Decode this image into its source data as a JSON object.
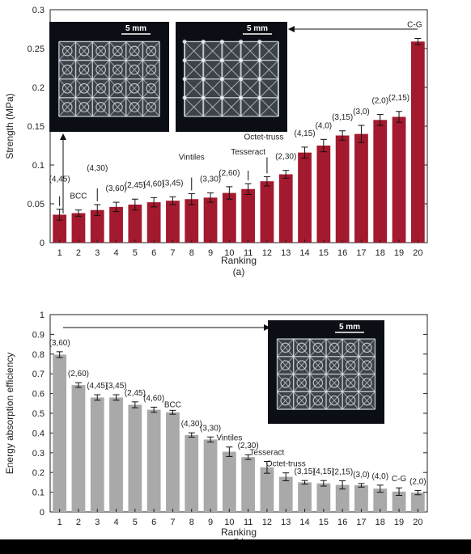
{
  "chart_data": [
    {
      "type": "bar",
      "panel_label": "(a)",
      "xlabel": "Ranking",
      "ylabel": "Strength (MPa)",
      "ylim": [
        0,
        0.3
      ],
      "yticks": [
        "0",
        "0.05",
        "0.1",
        "0.15",
        "0.2",
        "0.25",
        "0.3"
      ],
      "categories": [
        "1",
        "2",
        "3",
        "4",
        "5",
        "6",
        "7",
        "8",
        "9",
        "10",
        "11",
        "12",
        "13",
        "14",
        "15",
        "16",
        "17",
        "18",
        "19",
        "20"
      ],
      "values": [
        0.036,
        0.038,
        0.042,
        0.046,
        0.049,
        0.052,
        0.054,
        0.056,
        0.058,
        0.064,
        0.069,
        0.079,
        0.088,
        0.116,
        0.125,
        0.138,
        0.14,
        0.158,
        0.162,
        0.259
      ],
      "errors": [
        0.007,
        0.004,
        0.007,
        0.006,
        0.007,
        0.006,
        0.005,
        0.007,
        0.006,
        0.008,
        0.007,
        0.006,
        0.005,
        0.007,
        0.008,
        0.006,
        0.011,
        0.007,
        0.007,
        0.004
      ],
      "bar_color": "#a3192d",
      "annotations": [
        {
          "text": "(4,45)",
          "bar": 1
        },
        {
          "text": "BCC",
          "bar": 2
        },
        {
          "text": "(4,30)",
          "bar": 3
        },
        {
          "text": "(3,60)",
          "bar": 4
        },
        {
          "text": "(2,45)",
          "bar": 5
        },
        {
          "text": "(4,60)",
          "bar": 6
        },
        {
          "text": "(3,45)",
          "bar": 7
        },
        {
          "text": "Vintiles",
          "bar": 8
        },
        {
          "text": "(3,30)",
          "bar": 9
        },
        {
          "text": "(2,60)",
          "bar": 10
        },
        {
          "text": "Tesseract",
          "bar": 11
        },
        {
          "text": "Octet-truss",
          "bar": 12
        },
        {
          "text": "(2,30)",
          "bar": 13
        },
        {
          "text": "(4,15)",
          "bar": 14
        },
        {
          "text": "(4,0)",
          "bar": 15
        },
        {
          "text": "(3,15)",
          "bar": 16
        },
        {
          "text": "(3,0)",
          "bar": 17
        },
        {
          "text": "(2,0)",
          "bar": 18
        },
        {
          "text": "(2,15)",
          "bar": 19
        },
        {
          "text": "C-G",
          "bar": 20
        }
      ],
      "image_scale_labels": [
        "5 mm",
        "5 mm"
      ]
    },
    {
      "type": "bar",
      "panel_label": "(b)",
      "xlabel": "Ranking",
      "ylabel": "Energy absorption efficiency",
      "ylim": [
        0,
        1
      ],
      "yticks": [
        "0",
        "0.1",
        "0.2",
        "0.3",
        "0.4",
        "0.5",
        "0.6",
        "0.7",
        "0.8",
        "0.9",
        "1"
      ],
      "categories": [
        "1",
        "2",
        "3",
        "4",
        "5",
        "6",
        "7",
        "8",
        "9",
        "10",
        "11",
        "12",
        "13",
        "14",
        "15",
        "16",
        "17",
        "18",
        "19",
        "20"
      ],
      "values": [
        0.797,
        0.643,
        0.58,
        0.58,
        0.543,
        0.518,
        0.505,
        0.39,
        0.367,
        0.305,
        0.278,
        0.226,
        0.178,
        0.15,
        0.145,
        0.137,
        0.135,
        0.118,
        0.103,
        0.098
      ],
      "errors": [
        0.015,
        0.012,
        0.014,
        0.014,
        0.015,
        0.013,
        0.01,
        0.011,
        0.013,
        0.024,
        0.012,
        0.03,
        0.02,
        0.009,
        0.014,
        0.021,
        0.009,
        0.018,
        0.019,
        0.011
      ],
      "bar_color": "#a9a9a9",
      "annotations": [
        {
          "text": "(3,60)",
          "bar": 1
        },
        {
          "text": "(2,60)",
          "bar": 2
        },
        {
          "text": "(4,45)",
          "bar": 3
        },
        {
          "text": "(3,45)",
          "bar": 4
        },
        {
          "text": "(2,45)",
          "bar": 5
        },
        {
          "text": "(4,60)",
          "bar": 6
        },
        {
          "text": "BCC",
          "bar": 7
        },
        {
          "text": "(4,30)",
          "bar": 8
        },
        {
          "text": "(3,30)",
          "bar": 9
        },
        {
          "text": "Vintiles",
          "bar": 10
        },
        {
          "text": "(2,30)",
          "bar": 11
        },
        {
          "text": "Tesseract",
          "bar": 12
        },
        {
          "text": "Octet-truss",
          "bar": 13
        },
        {
          "text": "(3,15)",
          "bar": 14
        },
        {
          "text": "(4,15)",
          "bar": 15
        },
        {
          "text": "(2,15)",
          "bar": 16
        },
        {
          "text": "(3,0)",
          "bar": 17
        },
        {
          "text": "(4,0)",
          "bar": 18
        },
        {
          "text": "C-G",
          "bar": 19
        },
        {
          "text": "(2,0)",
          "bar": 20
        }
      ],
      "image_scale_labels": [
        "5 mm"
      ]
    }
  ]
}
